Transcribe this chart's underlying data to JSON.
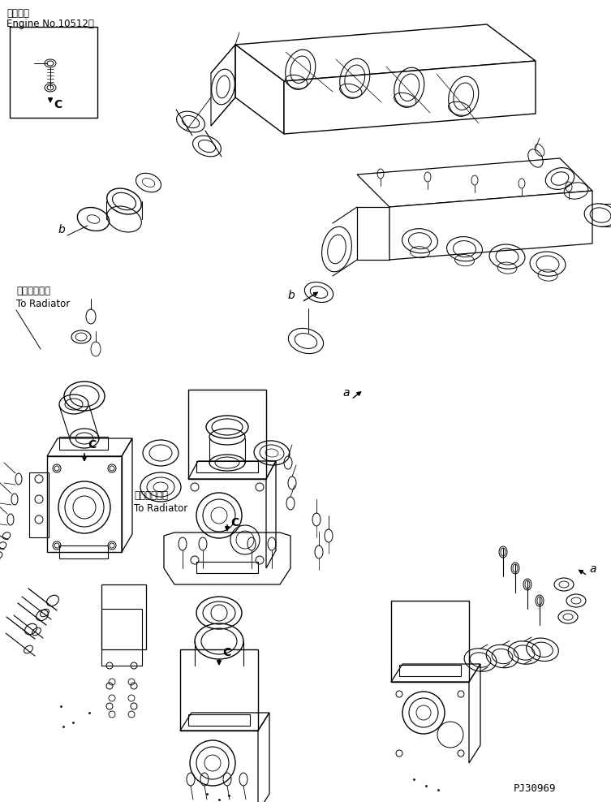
{
  "title_line1": "適用号機",
  "title_line2": "Engine No.10512～",
  "label_radiator1_jp": "ラジエータへ",
  "label_radiator1_en": "To Radiator",
  "label_radiator2_jp": "ラジエータへ",
  "label_radiator2_en": "To Radiator",
  "label_a1": "a",
  "label_a2": "a",
  "label_b1": "b",
  "label_b2": "b",
  "label_c1": "C",
  "label_c2": "C",
  "label_c3": "C",
  "part_number": "PJ30969",
  "bg_color": "#ffffff",
  "line_color": "#000000",
  "text_color": "#000000",
  "fig_width": 7.53,
  "fig_height": 9.88,
  "dpi": 100
}
